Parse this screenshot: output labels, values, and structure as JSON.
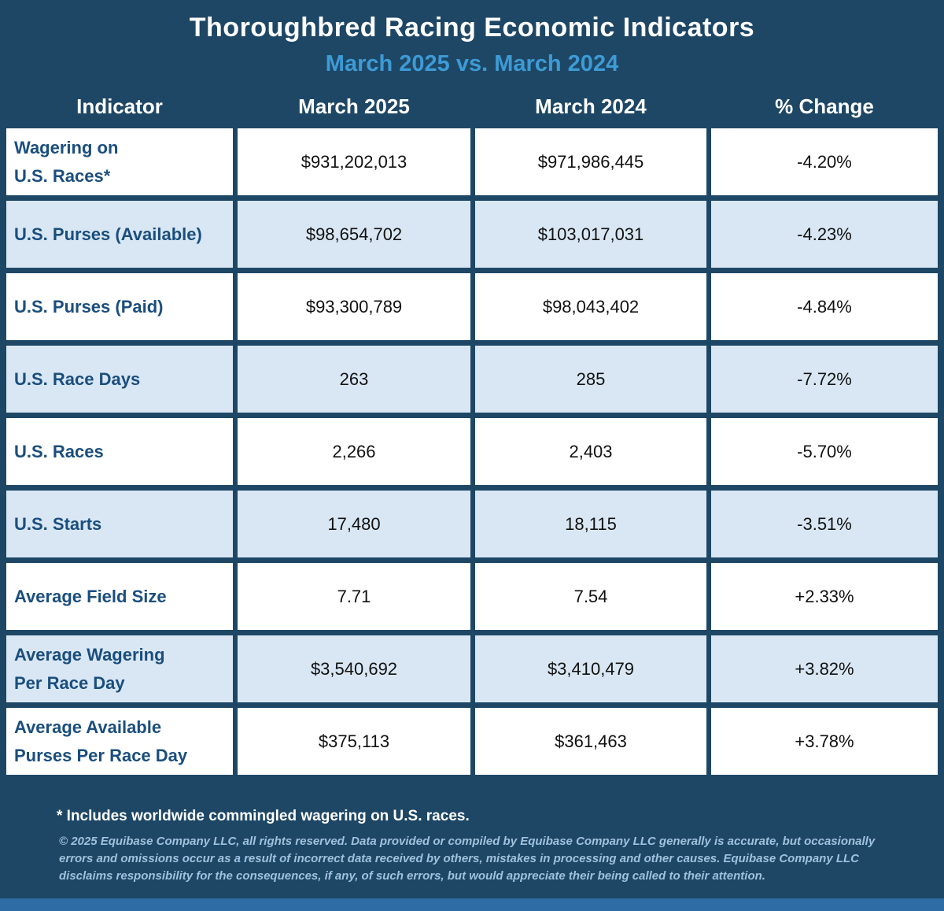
{
  "chart_data": {
    "type": "table",
    "title": "Thoroughbred Racing Economic Indicators",
    "subtitle": "March 2025 vs. March 2024",
    "columns": [
      "Indicator",
      "March 2025",
      "March 2024",
      "% Change"
    ],
    "rows": [
      [
        "Wagering on\nU.S. Races*",
        "$931,202,013",
        "$971,986,445",
        "-4.20%"
      ],
      [
        "U.S. Purses (Available)",
        "$98,654,702",
        "$103,017,031",
        "-4.23%"
      ],
      [
        "U.S. Purses (Paid)",
        "$93,300,789",
        "$98,043,402",
        "-4.84%"
      ],
      [
        "U.S. Race Days",
        "263",
        "285",
        "-7.72%"
      ],
      [
        "U.S. Races",
        "2,266",
        "2,403",
        "-5.70%"
      ],
      [
        "U.S. Starts",
        "17,480",
        "18,115",
        "-3.51%"
      ],
      [
        "Average Field Size",
        "7.71",
        "7.54",
        "+2.33%"
      ],
      [
        "Average Wagering\nPer Race Day",
        "$3,540,692",
        "$3,410,479",
        "+3.82%"
      ],
      [
        "Average Available\nPurses Per Race Day",
        "$375,113",
        "$361,463",
        "+3.78%"
      ]
    ]
  },
  "footnote": "* Includes worldwide commingled wagering on U.S. races.",
  "copyright": "© 2025 Equibase Company LLC, all rights reserved. Data provided or compiled by Equibase Company LLC generally is accurate, but occasionally errors and omissions occur as a result of incorrect data received by others, mistakes in processing and other causes. Equibase Company LLC disclaims responsibility for the consequences, if any, of such errors, but would appreciate their being called to their attention.",
  "colors": {
    "background": "#1E4766",
    "subtitle": "#3D9BD5",
    "row": "#FFFFFF",
    "row_alt": "#D9E7F4",
    "indicator_text": "#1A4E7E",
    "copyright_text": "#9FC2DD",
    "bottom_bar": "#2D6CA4"
  }
}
